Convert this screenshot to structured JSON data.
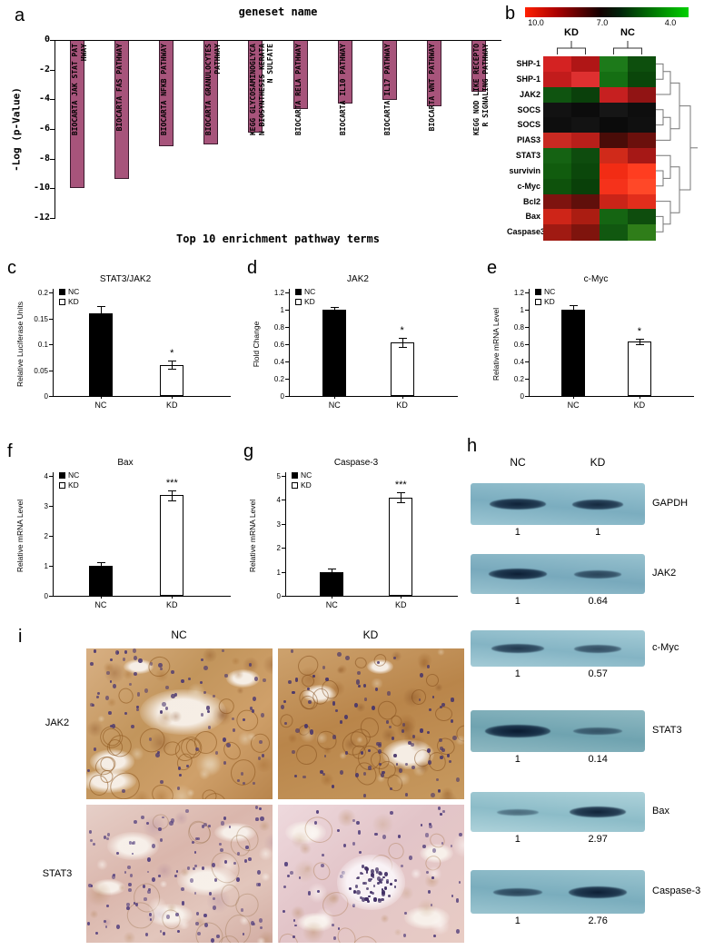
{
  "panels": {
    "a": {
      "letter": "a",
      "title": "geneset name",
      "ylabel": "-Log (p-Value)",
      "xlabel": "Top 10 enrichment pathway terms",
      "bar_color": "#a7547b",
      "chart_data": {
        "type": "bar",
        "categories": [
          "BIOCARTA JAK STAT PATHWAY",
          "BIOCARTA FAS PATHWAY",
          "BIOCARTA NFKB PATHWAY",
          "BIOCARTA GRANULOCYTES PATHWAY",
          "KEGG GLYCOSAMINOGLYCAN BIOSYNTHESIS KERATAN SULFATE",
          "BIOCARTA RELA PATHWAY",
          "BIOCARTA IL10 PATHWAY",
          "BIOCARTA IL17 PATHWAY",
          "BIOCARTA WNT PATHWAY",
          "KEGG NOD LIKE RECEPTOR SIGNALING PATHWAY"
        ],
        "values": [
          -9.9,
          -9.3,
          -7.1,
          -7.0,
          -6.2,
          -4.6,
          -4.2,
          -4.0,
          -4.4,
          -3.4
        ],
        "yticks": [
          0,
          -2,
          -4,
          -6,
          -8,
          -10,
          -12
        ],
        "ylim": [
          -12,
          0
        ]
      }
    },
    "b": {
      "letter": "b",
      "colorbar_labels": [
        "10.0",
        "7.0",
        "4.0"
      ],
      "col_groups": [
        "KD",
        "NC"
      ],
      "rows": [
        "SHP-1",
        "SHP-1",
        "JAK2",
        "SOCS",
        "SOCS",
        "PIAS3",
        "STAT3",
        "survivin",
        "c-Myc",
        "Bcl2",
        "Bax",
        "Caspase3"
      ],
      "cells": [
        [
          "#d42222",
          "#b01616",
          "#1d7a1a",
          "#0d4f0d"
        ],
        [
          "#c21c1c",
          "#de3030",
          "#156f13",
          "#0a460a"
        ],
        [
          "#0f5410",
          "#0a400b",
          "#c62020",
          "#911414"
        ],
        [
          "#121212",
          "#0c0c0c",
          "#161616",
          "#0e0e0e"
        ],
        [
          "#0e0e0e",
          "#131313",
          "#0b0b0b",
          "#101010"
        ],
        [
          "#c92a22",
          "#b81f1a",
          "#4a0c08",
          "#6b100c"
        ],
        [
          "#156313",
          "#0e4c0e",
          "#d02a1a",
          "#a61816"
        ],
        [
          "#115c0e",
          "#0b470b",
          "#f22c14",
          "#ff3d20"
        ],
        [
          "#0e520c",
          "#094009",
          "#f5321b",
          "#ff4828"
        ],
        [
          "#7e130f",
          "#600f0b",
          "#ca2418",
          "#e22e1c"
        ],
        [
          "#ce2518",
          "#ab1d12",
          "#156512",
          "#0e4d0d"
        ],
        [
          "#a01a12",
          "#7f140d",
          "#115810",
          "#2f7d19"
        ]
      ]
    },
    "c": {
      "letter": "c",
      "title": "STAT3/JAK2",
      "ylabel": "Relative Luciferase Units",
      "chart_data": {
        "type": "bar",
        "categories": [
          "NC",
          "KD"
        ],
        "values": [
          0.16,
          0.06
        ],
        "errors": [
          0.013,
          0.008
        ],
        "ymax": 0.2,
        "yticks": [
          "0",
          "0.05",
          "0.1",
          "0.15",
          "0.2"
        ],
        "legend": [
          "NC",
          "KD"
        ],
        "sig_label": "*",
        "sig_on": "KD"
      }
    },
    "d": {
      "letter": "d",
      "title": "JAK2",
      "ylabel": "Flold Change",
      "chart_data": {
        "type": "bar",
        "categories": [
          "NC",
          "KD"
        ],
        "values": [
          1.0,
          0.62
        ],
        "errors": [
          0.03,
          0.05
        ],
        "ymax": 1.2,
        "yticks": [
          "0",
          "0.2",
          "0.4",
          "0.6",
          "0.8",
          "1",
          "1.2"
        ],
        "legend": [
          "NC",
          "KD"
        ],
        "sig_label": "*",
        "sig_on": "KD"
      }
    },
    "e": {
      "letter": "e",
      "title": "c-Myc",
      "ylabel": "Relative mRNA Level",
      "chart_data": {
        "type": "bar",
        "categories": [
          "NC",
          "KD"
        ],
        "values": [
          1.0,
          0.63
        ],
        "errors": [
          0.05,
          0.03
        ],
        "ymax": 1.2,
        "yticks": [
          "0",
          "0.2",
          "0.4",
          "0.6",
          "0.8",
          "1",
          "1.2"
        ],
        "legend": [
          "NC",
          "KD"
        ],
        "sig_label": "*",
        "sig_on": "KD"
      }
    },
    "f": {
      "letter": "f",
      "title": "Bax",
      "ylabel": "Relative mRNA Level",
      "chart_data": {
        "type": "bar",
        "categories": [
          "NC",
          "KD"
        ],
        "values": [
          1.0,
          3.35
        ],
        "errors": [
          0.12,
          0.18
        ],
        "ymax": 4,
        "yticks": [
          "0",
          "1",
          "2",
          "3",
          "4"
        ],
        "legend": [
          "NC",
          "KD"
        ],
        "sig_label": "***",
        "sig_on": "KD"
      }
    },
    "g": {
      "letter": "g",
      "title": "Caspase-3",
      "ylabel": "Relative mRNA Level",
      "chart_data": {
        "type": "bar",
        "categories": [
          "NC",
          "KD"
        ],
        "values": [
          1.0,
          4.1
        ],
        "errors": [
          0.15,
          0.2
        ],
        "ymax": 5,
        "yticks": [
          "0",
          "1",
          "2",
          "3",
          "4",
          "5"
        ],
        "legend": [
          "NC",
          "KD"
        ],
        "sig_label": "***",
        "sig_on": "KD"
      }
    },
    "h": {
      "letter": "h",
      "col_headers": [
        "NC",
        "KD"
      ],
      "blots": [
        {
          "label": "GAPDH",
          "values": [
            "1",
            "1"
          ]
        },
        {
          "label": "JAK2",
          "values": [
            "1",
            "0.64"
          ]
        },
        {
          "label": "c-Myc",
          "values": [
            "1",
            "0.57"
          ]
        },
        {
          "label": "STAT3",
          "values": [
            "1",
            "0.14"
          ]
        },
        {
          "label": "Bax",
          "values": [
            "1",
            "2.97"
          ]
        },
        {
          "label": "Caspase-3",
          "values": [
            "1",
            "2.76"
          ]
        }
      ]
    },
    "i": {
      "letter": "i",
      "col_headers": [
        "NC",
        "KD"
      ],
      "row_labels": [
        "JAK2",
        "STAT3"
      ]
    }
  }
}
